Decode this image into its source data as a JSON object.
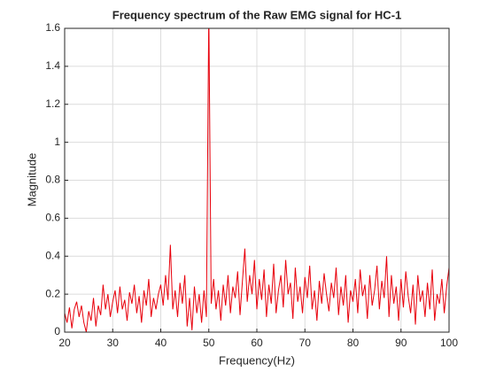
{
  "chart_data": {
    "type": "line",
    "title": "Frequency spectrum of the Raw EMG signal for HC-1",
    "xlabel": "Frequency(Hz)",
    "ylabel": "Magnitude",
    "x": [
      20,
      20.5,
      21,
      21.5,
      22,
      22.5,
      23,
      23.5,
      24,
      24.5,
      25,
      25.5,
      26,
      26.5,
      27,
      27.5,
      28,
      28.5,
      29,
      29.5,
      30,
      30.5,
      31,
      31.5,
      32,
      32.5,
      33,
      33.5,
      34,
      34.5,
      35,
      35.5,
      36,
      36.5,
      37,
      37.5,
      38,
      38.5,
      39,
      39.5,
      40,
      40.5,
      41,
      41.5,
      42,
      42.5,
      43,
      43.5,
      44,
      44.5,
      45,
      45.5,
      46,
      46.5,
      47,
      47.5,
      48,
      48.5,
      49,
      49.5,
      50,
      50.5,
      51,
      51.5,
      52,
      52.5,
      53,
      53.5,
      54,
      54.5,
      55,
      55.5,
      56,
      56.5,
      57,
      57.5,
      58,
      58.5,
      59,
      59.5,
      60,
      60.5,
      61,
      61.5,
      62,
      62.5,
      63,
      63.5,
      64,
      64.5,
      65,
      65.5,
      66,
      66.5,
      67,
      67.5,
      68,
      68.5,
      69,
      69.5,
      70,
      70.5,
      71,
      71.5,
      72,
      72.5,
      73,
      73.5,
      74,
      74.5,
      75,
      75.5,
      76,
      76.5,
      77,
      77.5,
      78,
      78.5,
      79,
      79.5,
      80,
      80.5,
      81,
      81.5,
      82,
      82.5,
      83,
      83.5,
      84,
      84.5,
      85,
      85.5,
      86,
      86.5,
      87,
      87.5,
      88,
      88.5,
      89,
      89.5,
      90,
      90.5,
      91,
      91.5,
      92,
      92.5,
      93,
      93.5,
      94,
      94.5,
      95,
      95.5,
      96,
      96.5,
      97,
      97.5,
      98,
      98.5,
      99,
      99.5,
      100
    ],
    "series": [
      {
        "color": "#e8000b",
        "values": [
          0.1,
          0.05,
          0.13,
          0.02,
          0.12,
          0.16,
          0.08,
          0.14,
          0.05,
          0.0,
          0.11,
          0.06,
          0.18,
          0.03,
          0.14,
          0.09,
          0.25,
          0.12,
          0.2,
          0.08,
          0.16,
          0.22,
          0.1,
          0.24,
          0.12,
          0.17,
          0.06,
          0.21,
          0.15,
          0.25,
          0.1,
          0.19,
          0.05,
          0.22,
          0.14,
          0.28,
          0.08,
          0.18,
          0.12,
          0.2,
          0.25,
          0.14,
          0.3,
          0.17,
          0.46,
          0.12,
          0.22,
          0.08,
          0.26,
          0.15,
          0.3,
          0.03,
          0.18,
          0.01,
          0.24,
          0.1,
          0.2,
          0.05,
          0.22,
          0.08,
          1.7,
          0.15,
          0.28,
          0.12,
          0.22,
          0.06,
          0.25,
          0.14,
          0.3,
          0.1,
          0.24,
          0.18,
          0.32,
          0.09,
          0.27,
          0.44,
          0.16,
          0.3,
          0.2,
          0.38,
          0.12,
          0.28,
          0.17,
          0.33,
          0.08,
          0.25,
          0.15,
          0.36,
          0.1,
          0.22,
          0.3,
          0.13,
          0.38,
          0.2,
          0.26,
          0.07,
          0.34,
          0.16,
          0.24,
          0.1,
          0.29,
          0.18,
          0.35,
          0.12,
          0.22,
          0.06,
          0.27,
          0.15,
          0.31,
          0.2,
          0.11,
          0.26,
          0.18,
          0.34,
          0.09,
          0.24,
          0.14,
          0.3,
          0.05,
          0.22,
          0.16,
          0.28,
          0.1,
          0.33,
          0.19,
          0.25,
          0.07,
          0.3,
          0.14,
          0.22,
          0.35,
          0.12,
          0.27,
          0.18,
          0.4,
          0.08,
          0.3,
          0.15,
          0.24,
          0.06,
          0.28,
          0.13,
          0.32,
          0.19,
          0.1,
          0.25,
          0.04,
          0.3,
          0.16,
          0.22,
          0.08,
          0.26,
          0.12,
          0.33,
          0.06,
          0.2,
          0.15,
          0.28,
          0.1,
          0.24,
          0.34
        ]
      }
    ],
    "xlim": [
      20,
      100
    ],
    "xticks": [
      20,
      30,
      40,
      50,
      60,
      70,
      80,
      90,
      100
    ],
    "ylim": [
      0,
      1.6
    ],
    "yticks": [
      0,
      0.2,
      0.4,
      0.6,
      0.8,
      1,
      1.2,
      1.4,
      1.6
    ],
    "grid": true
  }
}
